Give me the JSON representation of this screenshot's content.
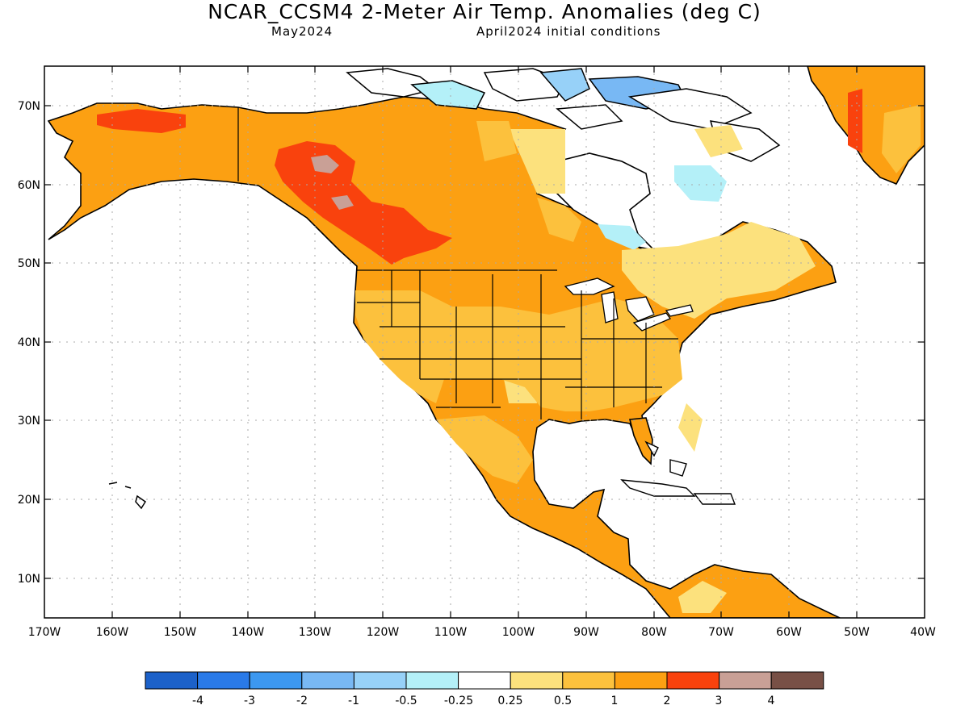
{
  "title": "NCAR_CCSM4 2-Meter Air Temp. Anomalies (deg C)",
  "subtitle_left": "May2024",
  "subtitle_right": "April2024 initial conditions",
  "lat_labels": [
    "70N",
    "60N",
    "50N",
    "40N",
    "30N",
    "20N",
    "10N"
  ],
  "lon_labels": [
    "170W",
    "160W",
    "150W",
    "140W",
    "130W",
    "120W",
    "110W",
    "100W",
    "90W",
    "80W",
    "70W",
    "60W",
    "50W",
    "40W"
  ],
  "colorbar": {
    "colors": [
      "#1c61c9",
      "#2a7ae8",
      "#3c98f0",
      "#78b8f4",
      "#97d1f8",
      "#b4f0f8",
      "#ffffff",
      "#fce17d",
      "#fcc13d",
      "#fca012",
      "#f9420d",
      "#c9a096",
      "#785046"
    ],
    "labels": [
      "-4",
      "-3",
      "-2",
      "-1",
      "-0.5",
      "-0.25",
      "0.25",
      "0.5",
      "1",
      "2",
      "3",
      "4"
    ]
  }
}
